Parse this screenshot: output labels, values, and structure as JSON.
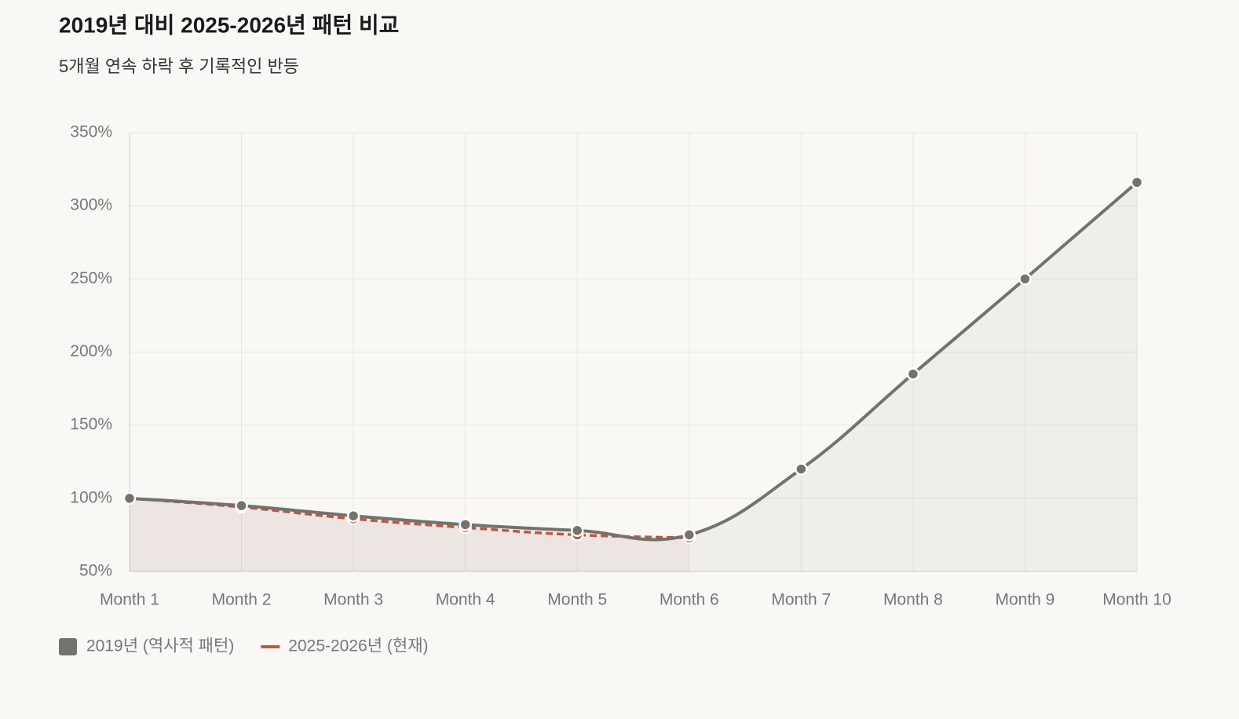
{
  "chart_data": {
    "type": "line",
    "title": "2019년 대비 2025-2026년 패턴 비교",
    "subtitle": "5개월 연속 하락 후 기록적인 반등",
    "categories": [
      "Month 1",
      "Month 2",
      "Month 3",
      "Month 4",
      "Month 5",
      "Month 6",
      "Month 7",
      "Month 8",
      "Month 9",
      "Month 10"
    ],
    "series": [
      {
        "name": "2019년 (역사적 패턴)",
        "color": "#73726c",
        "values": [
          100,
          95,
          88,
          82,
          78,
          75,
          120,
          185,
          250,
          316
        ]
      },
      {
        "name": "2025-2026년 (현재)",
        "color": "#c0554a",
        "values": [
          100,
          94,
          86,
          80,
          75,
          73,
          null,
          null,
          null,
          null
        ]
      }
    ],
    "ylim": [
      50,
      350
    ],
    "yticks": [
      {
        "value": 50,
        "label": "50%"
      },
      {
        "value": 100,
        "label": "100%"
      },
      {
        "value": 150,
        "label": "150%"
      },
      {
        "value": 200,
        "label": "200%"
      },
      {
        "value": 250,
        "label": "250%"
      },
      {
        "value": 300,
        "label": "300%"
      },
      {
        "value": 350,
        "label": "350%"
      }
    ],
    "grid": true,
    "legend": "bottom"
  }
}
